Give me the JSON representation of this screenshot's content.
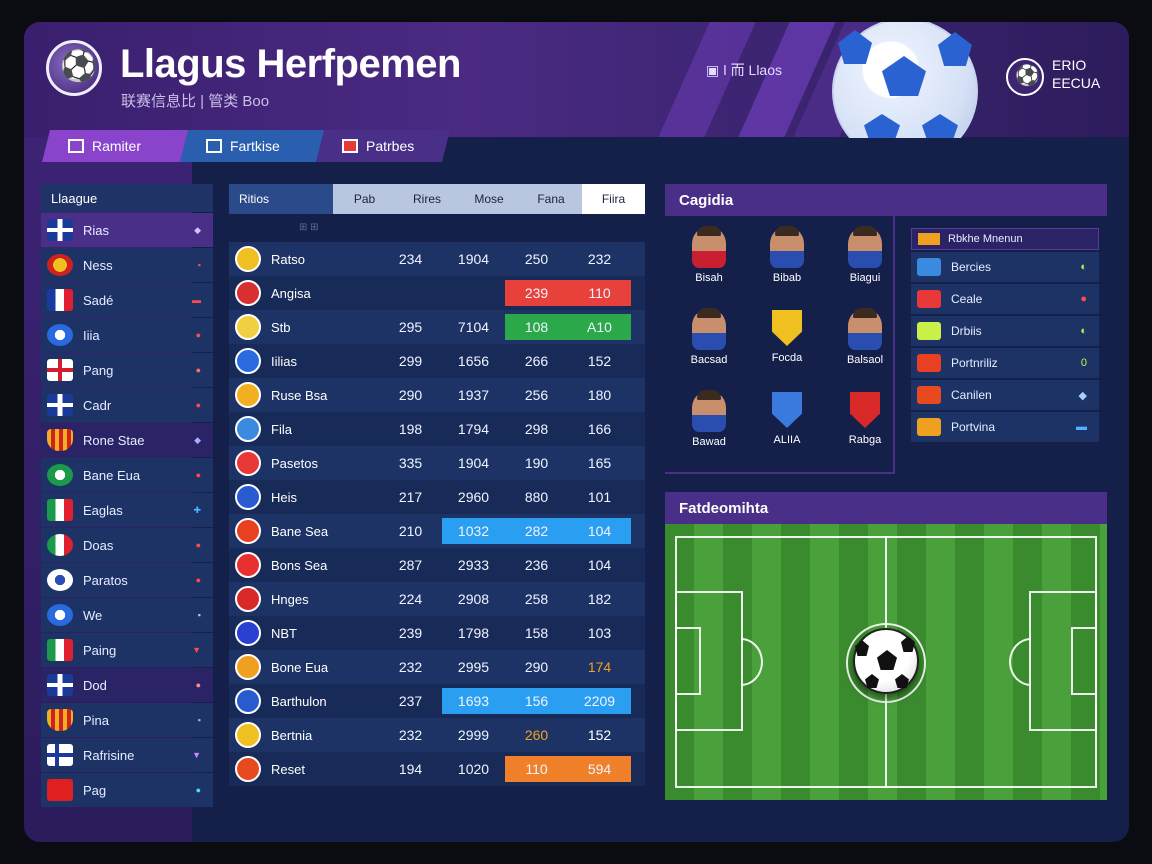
{
  "header": {
    "title": "Llagus Herfpemen",
    "subtitle": "联赛信息比 | 管类 Boo",
    "link": "▣ ǀ 而 Llaos",
    "corner_text": [
      "ERIO",
      "EECUA"
    ]
  },
  "tabs": [
    {
      "label": "Ramiter",
      "color": "#8a44cc"
    },
    {
      "label": "Fartkise",
      "color": "#2a5fb0"
    },
    {
      "label": "Patrbes",
      "color": "#4a2f88"
    }
  ],
  "leagues": {
    "header": "Llaague",
    "items": [
      {
        "label": "Rias",
        "flag": "uk",
        "mark": "◆",
        "mark_color": "#c9c9ff",
        "bg": "#4a2f88"
      },
      {
        "label": "Ness",
        "flag": "sp-badge",
        "mark": "▪",
        "mark_color": "#ff4a4a",
        "bg": "#1d3366"
      },
      {
        "label": "Sadé",
        "flag": "fr",
        "mark": "▬",
        "mark_color": "#ff4a4a",
        "bg": "#1d3366"
      },
      {
        "label": "Iiia",
        "flag": "blue-badge",
        "mark": "●",
        "mark_color": "#ff4a4a",
        "bg": "#1d3366"
      },
      {
        "label": "Pang",
        "flag": "en",
        "mark": "●",
        "mark_color": "#ff6a6a",
        "bg": "#1d3366"
      },
      {
        "label": "Cadr",
        "flag": "uk",
        "mark": "●",
        "mark_color": "#ff4a4a",
        "bg": "#1d3366"
      },
      {
        "label": "Rone Stae",
        "flag": "stripe-badge",
        "mark": "◆",
        "mark_color": "#aaaaff",
        "bg": "#2a2466"
      },
      {
        "label": "Bane Eua",
        "flag": "green-badge",
        "mark": "●",
        "mark_color": "#ff4a4a",
        "bg": "#1d3366"
      },
      {
        "label": "Eaglas",
        "flag": "it",
        "mark": "✚",
        "mark_color": "#4ab4ff",
        "bg": "#1d3366"
      },
      {
        "label": "Doas",
        "flag": "mx",
        "mark": "●",
        "mark_color": "#ff4a4a",
        "bg": "#1d3366"
      },
      {
        "label": "Paratos",
        "flag": "white-badge",
        "mark": "●",
        "mark_color": "#ff4a4a",
        "bg": "#1d3366"
      },
      {
        "label": "We",
        "flag": "blue-badge",
        "mark": "▪",
        "mark_color": "#aaccff",
        "bg": "#1d3366"
      },
      {
        "label": "Paing",
        "flag": "it",
        "mark": "▼",
        "mark_color": "#ff4a4a",
        "bg": "#1d3366"
      },
      {
        "label": "Dod",
        "flag": "uk",
        "mark": "●",
        "mark_color": "#ff8a8a",
        "bg": "#2a2466"
      },
      {
        "label": "Pina",
        "flag": "stripe-badge",
        "mark": "▪",
        "mark_color": "#aaaaff",
        "bg": "#1d3366"
      },
      {
        "label": "Rafrisine",
        "flag": "fi",
        "mark": "▼",
        "mark_color": "#c88aff",
        "bg": "#1d3366"
      },
      {
        "label": "Pag",
        "flag": "red",
        "mark": "●",
        "mark_color": "#4ad8ff",
        "bg": "#1d3366"
      }
    ]
  },
  "table": {
    "columns": [
      "Ritios",
      "Pab",
      "Rires",
      "Mose",
      "Fana",
      "Fiira"
    ],
    "sub_header": "⊞ ⊞",
    "rows": [
      {
        "name": "Ratso",
        "vals": [
          "234",
          "1904",
          "250",
          "232"
        ],
        "hl": [
          null,
          null,
          null,
          null
        ],
        "icon": "#f0c020"
      },
      {
        "name": "Angisa",
        "vals": [
          "",
          "",
          "239",
          "110"
        ],
        "hl": [
          null,
          null,
          "#e8403a",
          "#e8403a"
        ],
        "icon": "#d83030"
      },
      {
        "name": "Stb",
        "vals": [
          "295",
          "7104",
          "108",
          "A10"
        ],
        "hl": [
          null,
          null,
          "#2aa84a",
          "#2aa84a"
        ],
        "icon": "#f0d040"
      },
      {
        "name": "Iilias",
        "vals": [
          "299",
          "1656",
          "266",
          "152"
        ],
        "hl": [
          null,
          null,
          null,
          null
        ],
        "icon": "#2a6adf"
      },
      {
        "name": "Ruse Bsa",
        "vals": [
          "290",
          "1937",
          "256",
          "180"
        ],
        "hl": [
          null,
          null,
          null,
          null
        ],
        "icon": "#f0b020"
      },
      {
        "name": "Fila",
        "vals": [
          "198",
          "1794",
          "298",
          "166"
        ],
        "hl": [
          null,
          null,
          null,
          null
        ],
        "icon": "#3a8adf"
      },
      {
        "name": "Pasetos",
        "vals": [
          "335",
          "1904",
          "190",
          "165"
        ],
        "hl": [
          null,
          null,
          null,
          null
        ],
        "icon": "#e83838"
      },
      {
        "name": "Heis",
        "vals": [
          "217",
          "2960",
          "880",
          "101"
        ],
        "hl": [
          null,
          null,
          null,
          null
        ],
        "icon": "#2a5ad0"
      },
      {
        "name": "Bane Sea",
        "vals": [
          "210",
          "1032",
          "282",
          "104"
        ],
        "hl": [
          null,
          "#2a9ef0",
          "#2a9ef0",
          "#2a9ef0"
        ],
        "icon": "#e84020"
      },
      {
        "name": "Bons Sea",
        "vals": [
          "287",
          "2933",
          "236",
          "104"
        ],
        "hl": [
          null,
          null,
          null,
          null
        ],
        "icon": "#e83030"
      },
      {
        "name": "Hnges",
        "vals": [
          "224",
          "2908",
          "258",
          "182"
        ],
        "hl": [
          null,
          null,
          null,
          null
        ],
        "icon": "#d82828"
      },
      {
        "name": "NBT",
        "vals": [
          "239",
          "1798",
          "158",
          "103"
        ],
        "hl": [
          null,
          null,
          null,
          null
        ],
        "icon": "#2a40d0"
      },
      {
        "name": "Bone Eua",
        "vals": [
          "232",
          "2995",
          "290",
          "174"
        ],
        "hl": [
          null,
          null,
          null,
          null
        ],
        "icon": "#f0a020"
      },
      {
        "name": "Barthulon",
        "vals": [
          "237",
          "1693",
          "156",
          "2209"
        ],
        "hl": [
          null,
          "#2a9ef0",
          "#2a9ef0",
          "#2a9ef0"
        ],
        "icon": "#2a5ad0"
      },
      {
        "name": "Bertnia",
        "vals": [
          "232",
          "2999",
          "260",
          "152"
        ],
        "hl": [
          null,
          null,
          null,
          null
        ],
        "icon": "#f0c020"
      },
      {
        "name": "Reset",
        "vals": [
          "194",
          "1020",
          "110",
          "594"
        ],
        "hl": [
          null,
          null,
          "#f0802a",
          "#f0802a"
        ],
        "icon": "#e84a20"
      }
    ],
    "text_colors": {
      "14": [
        "",
        "",
        "#f0a020",
        "#ffffff"
      ],
      "12": [
        "",
        "",
        "",
        "#f0a020"
      ]
    }
  },
  "cagidia": {
    "title": "Cagidia",
    "players": [
      {
        "label": "Bisah",
        "type": "face",
        "shirt": "#c82030"
      },
      {
        "label": "Bibab",
        "type": "face",
        "shirt": "#2a4db0"
      },
      {
        "label": "Biagui",
        "type": "face",
        "shirt": "#2a4db0"
      },
      {
        "label": "Bacsad",
        "type": "face",
        "shirt": "#2a4db0"
      },
      {
        "label": "Focda",
        "type": "badge",
        "shirt": "#f0c020"
      },
      {
        "label": "Balsaol",
        "type": "face",
        "shirt": "#2a4db0"
      },
      {
        "label": "Bawad",
        "type": "face",
        "shirt": "#2a4db0"
      },
      {
        "label": "ALIIA",
        "type": "badge",
        "shirt": "#3a7adf"
      },
      {
        "label": "Rabga",
        "type": "badge",
        "shirt": "#d82828"
      }
    ],
    "list_head": "Rbkhe Mnenun",
    "list": [
      {
        "label": "Bercies",
        "flag": "#3a8adf",
        "mark": "◐",
        "mark_color": "#c8f048"
      },
      {
        "label": "Ceale",
        "flag": "#e83838",
        "mark": "●",
        "mark_color": "#ff4a4a"
      },
      {
        "label": "Drbiis",
        "flag": "#c8f048",
        "mark": "◐",
        "mark_color": "#c8f048"
      },
      {
        "label": "Portnriliz",
        "flag": "#e84020",
        "mark": "0",
        "mark_color": "#c8f048"
      },
      {
        "label": "Canilen",
        "flag": "#e84a20",
        "mark": "◆",
        "mark_color": "#aaccff"
      },
      {
        "label": "Portvina",
        "flag": "#f0a020",
        "mark": "▬",
        "mark_color": "#4ab4ff"
      }
    ]
  },
  "field": {
    "title": "Fatdeomihta"
  }
}
